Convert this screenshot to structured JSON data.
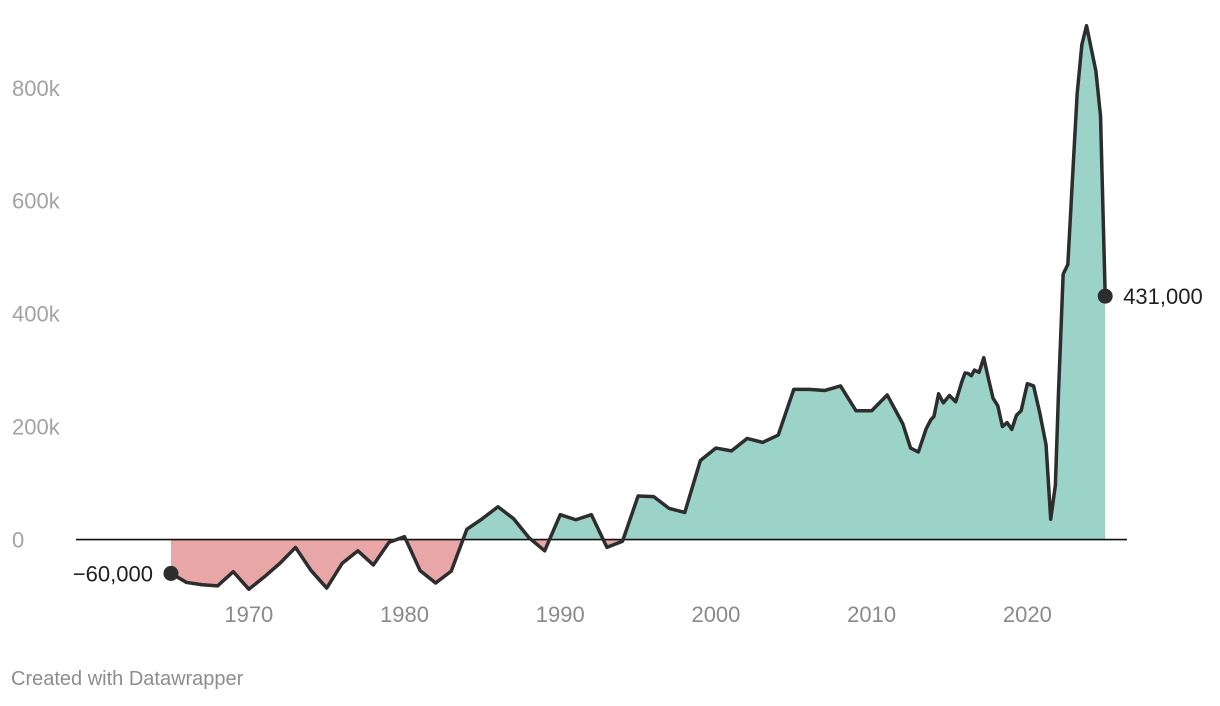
{
  "chart_data": {
    "type": "area",
    "title": "",
    "xlabel": "",
    "ylabel": "",
    "xlim": [
      1958.9,
      2026.4
    ],
    "ylim": [
      -100000,
      920000
    ],
    "y_ticks": [
      {
        "value": 0,
        "label": "0"
      },
      {
        "value": 200000,
        "label": "200k"
      },
      {
        "value": 400000,
        "label": "400k"
      },
      {
        "value": 600000,
        "label": "600k"
      },
      {
        "value": 800000,
        "label": "800k"
      }
    ],
    "x_ticks": [
      {
        "value": 1970,
        "label": "1970"
      },
      {
        "value": 1980,
        "label": "1980"
      },
      {
        "value": 1990,
        "label": "1990"
      },
      {
        "value": 2000,
        "label": "2000"
      },
      {
        "value": 2010,
        "label": "2010"
      },
      {
        "value": 2020,
        "label": "2020"
      }
    ],
    "grid": false,
    "colors": {
      "positive_fill": "#9bd3c9",
      "negative_fill": "#e8a6a6",
      "line": "#2d2d2d",
      "zero_line": "#111111"
    },
    "series": [
      {
        "x": [
          1965,
          1966,
          1967,
          1968,
          1969,
          1970,
          1971,
          1972,
          1973,
          1974,
          1975,
          1976,
          1977,
          1978,
          1979,
          1980,
          1981,
          1982,
          1983,
          1984,
          1985,
          1986,
          1987,
          1988,
          1989,
          1990,
          1991,
          1992,
          1993,
          1994,
          1995,
          1996,
          1997,
          1998,
          1999,
          2000,
          2001,
          2002,
          2003,
          2004,
          2005,
          2006,
          2007,
          2008,
          2009,
          2010,
          2011,
          2012,
          2012.5,
          2013,
          2013.5,
          2013.8,
          2014,
          2014.3,
          2014.6,
          2015,
          2015.4,
          2015.8,
          2016,
          2016.2,
          2016.4,
          2016.6,
          2016.9,
          2017.2,
          2017.5,
          2017.8,
          2018.1,
          2018.4,
          2018.7,
          2019,
          2019.3,
          2019.6,
          2020,
          2020.4,
          2020.8,
          2021.2,
          2021.5,
          2021.8,
          2022.0,
          2022.3,
          2022.6,
          2022.9,
          2023.2,
          2023.5,
          2023.8,
          2024.1,
          2024.4,
          2024.7,
          2025.0
        ],
        "values": [
          -60000,
          -76000,
          -80000,
          -82000,
          -57000,
          -88000,
          -66000,
          -42000,
          -14000,
          -55000,
          -86000,
          -42000,
          -20000,
          -45000,
          -5000,
          5000,
          -55000,
          -77000,
          -56000,
          18000,
          37000,
          58000,
          37000,
          3000,
          -20000,
          44000,
          35000,
          44000,
          -14000,
          -3000,
          77000,
          76000,
          55000,
          48000,
          140000,
          162000,
          157000,
          179000,
          172000,
          185000,
          266000,
          266000,
          264000,
          272000,
          228000,
          228000,
          256000,
          205000,
          162000,
          155000,
          196000,
          212000,
          218000,
          258000,
          242000,
          255000,
          244000,
          280000,
          295000,
          294000,
          290000,
          300000,
          296000,
          322000,
          285000,
          250000,
          237000,
          200000,
          207000,
          195000,
          220000,
          228000,
          276000,
          272000,
          224000,
          168000,
          36000,
          96000,
          260000,
          470000,
          487000,
          640000,
          790000,
          876000,
          910000,
          870000,
          830000,
          750000,
          431000
        ]
      }
    ],
    "start_label": "−60,000",
    "end_label": "431,000"
  },
  "credit": "Created with Datawrapper"
}
